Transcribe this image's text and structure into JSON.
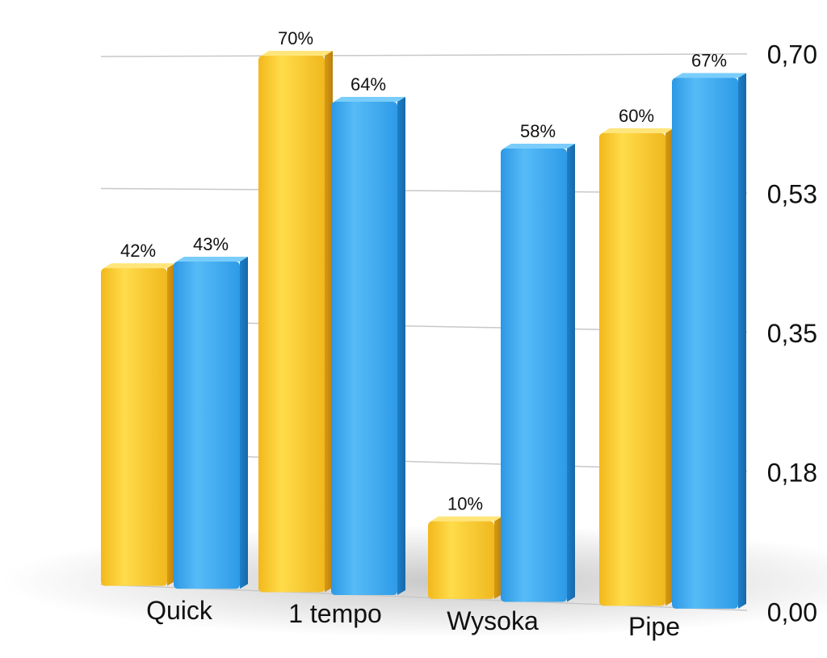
{
  "chart_data": {
    "type": "bar",
    "categories": [
      "Quick",
      "1 tempo",
      "Wysoka",
      "Pipe"
    ],
    "series": [
      {
        "values": [
          0.42,
          0.7,
          0.1,
          0.6
        ],
        "labels": [
          "42%",
          "70%",
          "10%",
          "60%"
        ],
        "color": "#F7C92E"
      },
      {
        "values": [
          0.43,
          0.64,
          0.58,
          0.67
        ],
        "labels": [
          "43%",
          "64%",
          "58%",
          "67%"
        ],
        "color": "#3AA8F0"
      }
    ],
    "y_ticks": [
      "0,00",
      "0,18",
      "0,35",
      "0,53",
      "0,70"
    ],
    "y_tick_values": [
      0,
      0.175,
      0.35,
      0.525,
      0.7
    ],
    "ylim": [
      0,
      0.7
    ],
    "y_axis_side": "right",
    "grid": true,
    "legend": false
  }
}
